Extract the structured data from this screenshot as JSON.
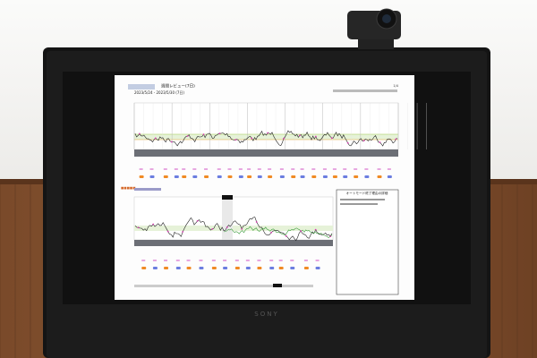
{
  "screen": {
    "title": "週間レビュー(7日)",
    "date_range": "2023/5/24 - 2023/5/30 (7日)",
    "page": "1/4",
    "panel_title": "オートモード終了理由の詳細"
  },
  "monitor": {
    "brand": "SONY"
  }
}
